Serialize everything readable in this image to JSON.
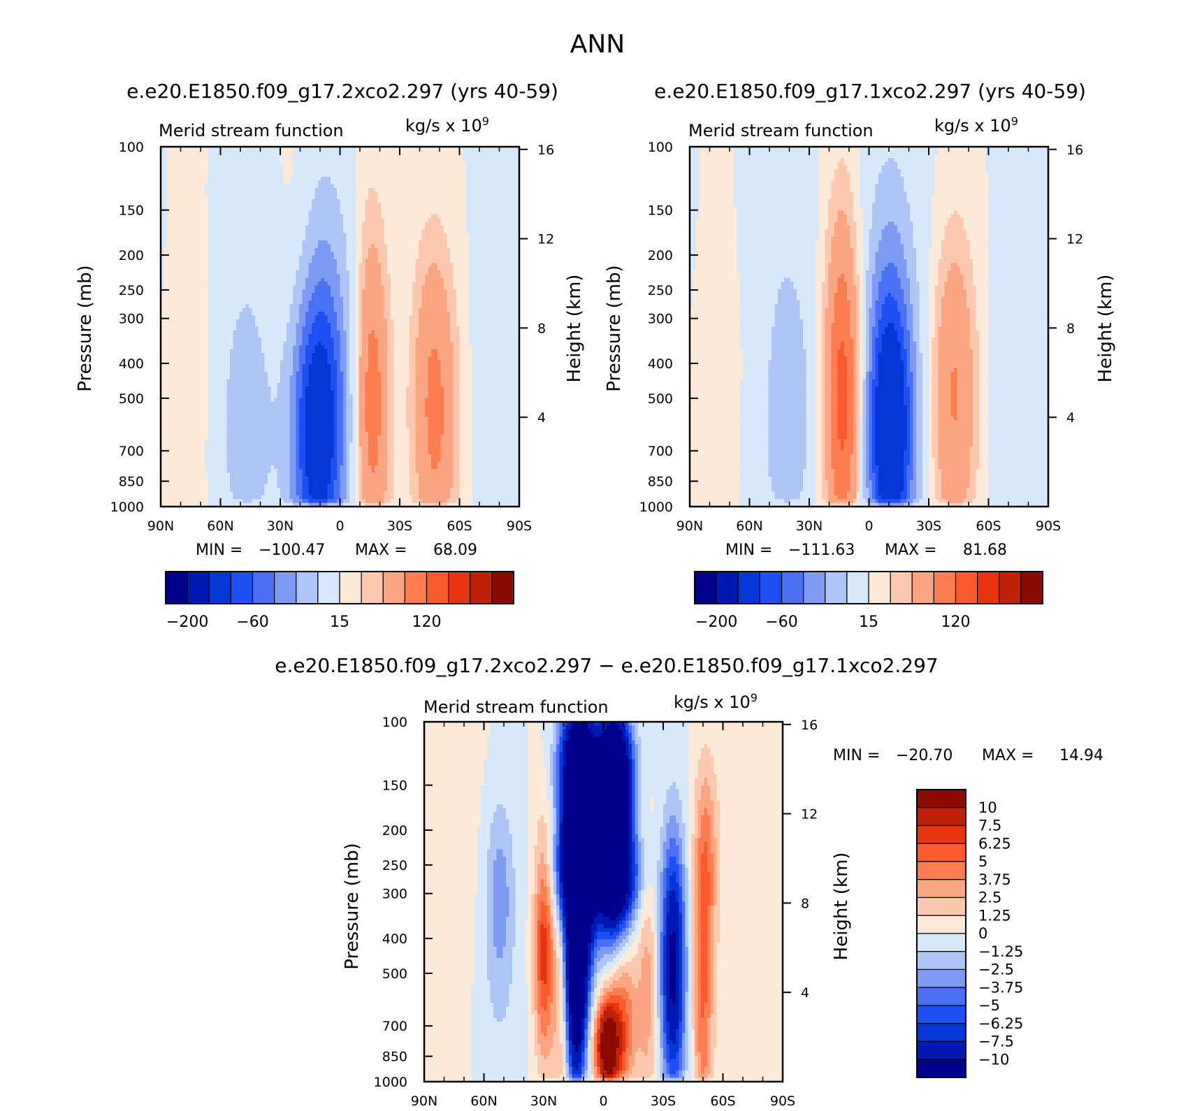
{
  "page": {
    "title": "ANN"
  },
  "colors": {
    "neg": [
      "#00008c",
      "#0019b2",
      "#0437d6",
      "#1e4ff5",
      "#4a70f4",
      "#7e9bf3",
      "#aec6f6",
      "#d7e8fb"
    ],
    "pos": [
      "#fde9d8",
      "#fdc9ae",
      "#fca582",
      "#fb7d50",
      "#fb5a2c",
      "#e83510",
      "#bf2208",
      "#8c0a04"
    ]
  },
  "chart_data": [
    {
      "id": "case1",
      "type": "contour",
      "title": "e.e20.E1850.f09_g17.2xco2.297 (yrs 40-59)",
      "subtitle_left": "Merid stream function",
      "units": "kg/s x 10",
      "units_exp": "9",
      "ylabel": "Pressure (mb)",
      "y2label": "Height (km)",
      "xlim": [
        90,
        -90
      ],
      "ylim": [
        1000,
        100
      ],
      "x_ticks": [
        {
          "v": 90,
          "label": "90N"
        },
        {
          "v": 60,
          "label": "60N"
        },
        {
          "v": 30,
          "label": "30N"
        },
        {
          "v": 0,
          "label": "0"
        },
        {
          "v": -30,
          "label": "30S"
        },
        {
          "v": -60,
          "label": "60S"
        },
        {
          "v": -90,
          "label": "90S"
        }
      ],
      "y_ticks": [
        {
          "v": 100,
          "label": "100"
        },
        {
          "v": 150,
          "label": "150"
        },
        {
          "v": 200,
          "label": "200"
        },
        {
          "v": 250,
          "label": "250"
        },
        {
          "v": 300,
          "label": "300"
        },
        {
          "v": 400,
          "label": "400"
        },
        {
          "v": 500,
          "label": "500"
        },
        {
          "v": 700,
          "label": "700"
        },
        {
          "v": 850,
          "label": "850"
        },
        {
          "v": 1000,
          "label": "1000"
        }
      ],
      "y2_ticks": [
        {
          "v": 16,
          "label": "16"
        },
        {
          "v": 12,
          "label": "12"
        },
        {
          "v": 8,
          "label": "8"
        },
        {
          "v": 4,
          "label": "4"
        }
      ],
      "stats": {
        "min_label": "MIN =",
        "min": "−100.47",
        "max_label": "MAX =",
        "max": "68.09"
      },
      "colorbar": {
        "orientation": "horizontal",
        "labels": [
          "−200",
          "−60",
          "15",
          "120"
        ]
      },
      "cells": [
        {
          "lat": 12,
          "p": 650,
          "amp": -100,
          "w": 13,
          "pw": 0.9
        },
        {
          "lat": 8,
          "p": 400,
          "amp": -40,
          "w": 12,
          "pw": 1.3
        },
        {
          "lat": -10,
          "p": 450,
          "amp": -20,
          "w": 12,
          "pw": 1.2
        },
        {
          "lat": -16,
          "p": 550,
          "amp": 68,
          "w": 9,
          "pw": 1.0
        },
        {
          "lat": -15,
          "p": 350,
          "amp": 25,
          "w": 8,
          "pw": 1.2
        },
        {
          "lat": 47,
          "p": 550,
          "amp": -25,
          "w": 14,
          "pw": 1.0
        },
        {
          "lat": 47,
          "p": 700,
          "amp": -8,
          "w": 18,
          "pw": 0.6
        },
        {
          "lat": -48,
          "p": 600,
          "amp": 55,
          "w": 11,
          "pw": 1.0
        },
        {
          "lat": -46,
          "p": 380,
          "amp": 18,
          "w": 10,
          "pw": 0.9
        },
        {
          "lat": 72,
          "p": 450,
          "amp": 8,
          "w": 9,
          "pw": 1.4
        },
        {
          "lat": -72,
          "p": 500,
          "amp": -6,
          "w": 10,
          "pw": 1.4
        },
        {
          "lat": 50,
          "p": 180,
          "amp": -5,
          "w": 22,
          "pw": 0.8
        },
        {
          "lat": 22,
          "p": 160,
          "amp": 6,
          "w": 10,
          "pw": 0.8
        }
      ]
    },
    {
      "id": "case2",
      "type": "contour",
      "title": "e.e20.E1850.f09_g17.1xco2.297 (yrs 40-59)",
      "subtitle_left": "Merid stream function",
      "units": "kg/s x 10",
      "units_exp": "9",
      "ylabel": "Pressure (mb)",
      "y2label": "Height (km)",
      "xlim": [
        90,
        -90
      ],
      "ylim": [
        1000,
        100
      ],
      "x_ticks": [
        {
          "v": 90,
          "label": "90N"
        },
        {
          "v": 60,
          "label": "60N"
        },
        {
          "v": 30,
          "label": "30N"
        },
        {
          "v": 0,
          "label": "0"
        },
        {
          "v": -30,
          "label": "30S"
        },
        {
          "v": -60,
          "label": "60S"
        },
        {
          "v": -90,
          "label": "90S"
        }
      ],
      "y_ticks": [
        {
          "v": 100,
          "label": "100"
        },
        {
          "v": 150,
          "label": "150"
        },
        {
          "v": 200,
          "label": "200"
        },
        {
          "v": 250,
          "label": "250"
        },
        {
          "v": 300,
          "label": "300"
        },
        {
          "v": 400,
          "label": "400"
        },
        {
          "v": 500,
          "label": "500"
        },
        {
          "v": 700,
          "label": "700"
        },
        {
          "v": 850,
          "label": "850"
        },
        {
          "v": 1000,
          "label": "1000"
        }
      ],
      "y2_ticks": [
        {
          "v": 16,
          "label": "16"
        },
        {
          "v": 12,
          "label": "12"
        },
        {
          "v": 8,
          "label": "8"
        },
        {
          "v": 4,
          "label": "4"
        }
      ],
      "stats": {
        "min_label": "MIN =",
        "min": "−111.63",
        "max_label": "MAX =",
        "max": "81.68"
      },
      "colorbar": {
        "orientation": "horizontal",
        "labels": [
          "−200",
          "−60",
          "15",
          "120"
        ]
      },
      "cells": [
        {
          "lat": -11,
          "p": 650,
          "amp": -111,
          "w": 12,
          "pw": 0.9
        },
        {
          "lat": -10,
          "p": 380,
          "amp": -45,
          "w": 12,
          "pw": 1.3
        },
        {
          "lat": 13,
          "p": 550,
          "amp": 80,
          "w": 9,
          "pw": 1.0
        },
        {
          "lat": 14,
          "p": 330,
          "amp": 28,
          "w": 8,
          "pw": 1.1
        },
        {
          "lat": 40,
          "p": 500,
          "amp": -28,
          "w": 13,
          "pw": 1.0
        },
        {
          "lat": 46,
          "p": 720,
          "amp": -8,
          "w": 18,
          "pw": 0.6
        },
        {
          "lat": -43,
          "p": 550,
          "amp": 50,
          "w": 11,
          "pw": 1.0
        },
        {
          "lat": -42,
          "p": 330,
          "amp": 16,
          "w": 10,
          "pw": 0.9
        },
        {
          "lat": 72,
          "p": 450,
          "amp": 8,
          "w": 9,
          "pw": 1.4
        },
        {
          "lat": -68,
          "p": 550,
          "amp": -8,
          "w": 10,
          "pw": 1.2
        },
        {
          "lat": 50,
          "p": 180,
          "amp": -6,
          "w": 22,
          "pw": 0.8
        },
        {
          "lat": -30,
          "p": 180,
          "amp": -5,
          "w": 14,
          "pw": 0.8
        }
      ]
    },
    {
      "id": "diff",
      "type": "contour",
      "title": "e.e20.E1850.f09_g17.2xco2.297 − e.e20.E1850.f09_g17.1xco2.297",
      "subtitle_left": "Merid stream function",
      "units": "kg/s x 10",
      "units_exp": "9",
      "ylabel": "Pressure (mb)",
      "y2label": "Height (km)",
      "xlim": [
        90,
        -90
      ],
      "ylim": [
        1000,
        100
      ],
      "x_ticks": [
        {
          "v": 90,
          "label": "90N"
        },
        {
          "v": 60,
          "label": "60N"
        },
        {
          "v": 30,
          "label": "30N"
        },
        {
          "v": 0,
          "label": "0"
        },
        {
          "v": -30,
          "label": "30S"
        },
        {
          "v": -60,
          "label": "60S"
        },
        {
          "v": -90,
          "label": "90S"
        }
      ],
      "y_ticks": [
        {
          "v": 100,
          "label": "100"
        },
        {
          "v": 150,
          "label": "150"
        },
        {
          "v": 200,
          "label": "200"
        },
        {
          "v": 250,
          "label": "250"
        },
        {
          "v": 300,
          "label": "300"
        },
        {
          "v": 400,
          "label": "400"
        },
        {
          "v": 500,
          "label": "500"
        },
        {
          "v": 700,
          "label": "700"
        },
        {
          "v": 850,
          "label": "850"
        },
        {
          "v": 1000,
          "label": "1000"
        }
      ],
      "y2_ticks": [
        {
          "v": 16,
          "label": "16"
        },
        {
          "v": 12,
          "label": "12"
        },
        {
          "v": 8,
          "label": "8"
        },
        {
          "v": 4,
          "label": "4"
        }
      ],
      "stats": {
        "min_label": "MIN =",
        "min": "−20.70",
        "max_label": "MAX =",
        "max": "14.94"
      },
      "colorbar": {
        "orientation": "vertical",
        "labels": [
          "10",
          "7.5",
          "6.25",
          "5",
          "3.75",
          "2.5",
          "1.25",
          "0",
          "−1.25",
          "−2.5",
          "−3.75",
          "−5",
          "−6.25",
          "−7.5",
          "−10"
        ]
      },
      "cells": [
        {
          "lat": 12,
          "p": 200,
          "amp": -20,
          "w": 8,
          "pw": 0.6
        },
        {
          "lat": 13,
          "p": 130,
          "amp": -9,
          "w": 9,
          "pw": 0.4
        },
        {
          "lat": 12,
          "p": 270,
          "amp": -6,
          "w": 14,
          "pw": 0.3
        },
        {
          "lat": 14,
          "p": 550,
          "amp": -14,
          "w": 5,
          "pw": 0.7
        },
        {
          "lat": 12,
          "p": 420,
          "amp": -6,
          "w": 7,
          "pw": 0.5
        },
        {
          "lat": -2,
          "p": 800,
          "amp": 13,
          "w": 6,
          "pw": 0.3
        },
        {
          "lat": -10,
          "p": 680,
          "amp": 5,
          "w": 7,
          "pw": 0.5
        },
        {
          "lat": -5,
          "p": 200,
          "amp": -18,
          "w": 8,
          "pw": 0.6
        },
        {
          "lat": -5,
          "p": 130,
          "amp": -10,
          "w": 9,
          "pw": 0.3
        },
        {
          "lat": -8,
          "p": 270,
          "amp": -6,
          "w": 12,
          "pw": 0.3
        },
        {
          "lat": -35,
          "p": 480,
          "amp": -11,
          "w": 6,
          "pw": 0.8
        },
        {
          "lat": 14,
          "p": 200,
          "amp": 0,
          "w": 5,
          "pw": 0.5
        },
        {
          "lat": 12,
          "p": 195,
          "amp": 14,
          "w": 3,
          "pw": 0.35
        },
        {
          "lat": 30,
          "p": 420,
          "amp": 7,
          "w": 5,
          "pw": 0.7
        },
        {
          "lat": 20,
          "p": 620,
          "amp": 3,
          "w": 6,
          "pw": 0.8
        },
        {
          "lat": -50,
          "p": 550,
          "amp": 5,
          "w": 5,
          "pw": 1.0
        },
        {
          "lat": -52,
          "p": 230,
          "amp": 3,
          "w": 6,
          "pw": 0.6
        },
        {
          "lat": 52,
          "p": 300,
          "amp": -3,
          "w": 7,
          "pw": 0.6
        },
        {
          "lat": 55,
          "p": 700,
          "amp": -1,
          "w": 15,
          "pw": 1.0
        },
        {
          "lat": -22,
          "p": 550,
          "amp": 3,
          "w": 5,
          "pw": 0.8
        },
        {
          "lat": 75,
          "p": 450,
          "amp": 0.8,
          "w": 18,
          "pw": 1.5
        },
        {
          "lat": -75,
          "p": 450,
          "amp": 0.8,
          "w": 18,
          "pw": 1.5
        }
      ]
    }
  ]
}
